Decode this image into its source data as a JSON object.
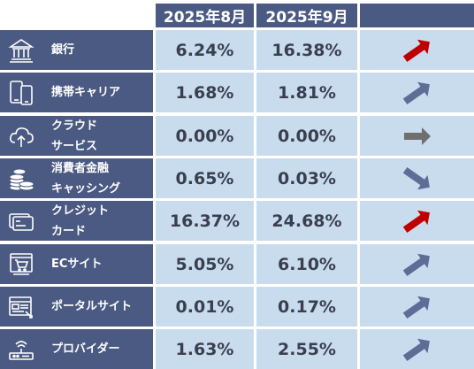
{
  "columns": [
    "2025年8月",
    "2025年9月"
  ],
  "colors": {
    "up": "#c00000",
    "mild": "#5d6d96",
    "flat": "#6f6f6f",
    "header": "#4b5a82",
    "cell": "#c9dcee"
  },
  "rows": [
    {
      "icon": "bank-icon",
      "label": [
        "銀行"
      ],
      "aug": "6.24%",
      "sep": "16.38%",
      "trend": "up"
    },
    {
      "icon": "mobile-phone-icon",
      "label": [
        "携帯キャリア"
      ],
      "aug": "1.68%",
      "sep": "1.81%",
      "trend": "mild-up"
    },
    {
      "icon": "cloud-upload-icon",
      "label": [
        "クラウド",
        "サービス"
      ],
      "aug": "0.00%",
      "sep": "0.00%",
      "trend": "flat"
    },
    {
      "icon": "coins-icon",
      "label": [
        "消費者金融",
        "キャッシング"
      ],
      "aug": "0.65%",
      "sep": "0.03%",
      "trend": "down"
    },
    {
      "icon": "credit-card-icon",
      "label": [
        "クレジット",
        "カード"
      ],
      "aug": "16.37%",
      "sep": "24.68%",
      "trend": "up"
    },
    {
      "icon": "shopping-cart-icon",
      "label": [
        "ECサイト"
      ],
      "aug": "5.05%",
      "sep": "6.10%",
      "trend": "mild-up"
    },
    {
      "icon": "web-portal-icon",
      "label": [
        "ポータルサイト"
      ],
      "aug": "0.01%",
      "sep": "0.17%",
      "trend": "mild-up"
    },
    {
      "icon": "router-icon",
      "label": [
        "プロバイダー"
      ],
      "aug": "1.63%",
      "sep": "2.55%",
      "trend": "mild-up"
    }
  ]
}
